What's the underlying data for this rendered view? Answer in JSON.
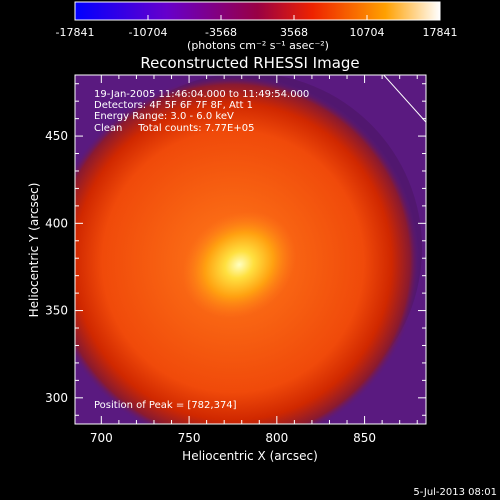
{
  "chart_data": {
    "type": "heatmap",
    "title": "Reconstructed RHESSI Image",
    "xlabel": "Heliocentric X (arcsec)",
    "ylabel": "Heliocentric Y (arcsec)",
    "xlim": [
      685,
      885
    ],
    "ylim": [
      285,
      485
    ],
    "xticks": [
      700,
      750,
      800,
      850
    ],
    "yticks": [
      300,
      350,
      400,
      450
    ],
    "colorbar": {
      "ticks": [
        "-17841",
        "-10704",
        "-3568",
        "3568",
        "10704",
        "17841"
      ],
      "unit": "(photons cm⁻² s⁻¹ asec⁻²)",
      "range": [
        -17841,
        17841
      ],
      "colormap": "blue-purple-red-orange-yellow-white"
    },
    "annotations": [
      "19-Jan-2005 11:46:04.000 to 11:49:54.000",
      "Detectors: 4F 5F 6F 7F 8F, Att 1",
      "Energy Range: 3.0 - 6.0 keV",
      "Clean     Total counts: 7.77E+05"
    ],
    "peak_label": "Position of Peak = [782,374]",
    "peak": {
      "x": 782,
      "y": 374
    },
    "source": {
      "center_x": 775,
      "center_y": 378,
      "radius": 90
    },
    "limb_line": [
      [
        860,
        486
      ],
      [
        885,
        458
      ]
    ],
    "footer": "5-Jul-2013 08:01"
  }
}
